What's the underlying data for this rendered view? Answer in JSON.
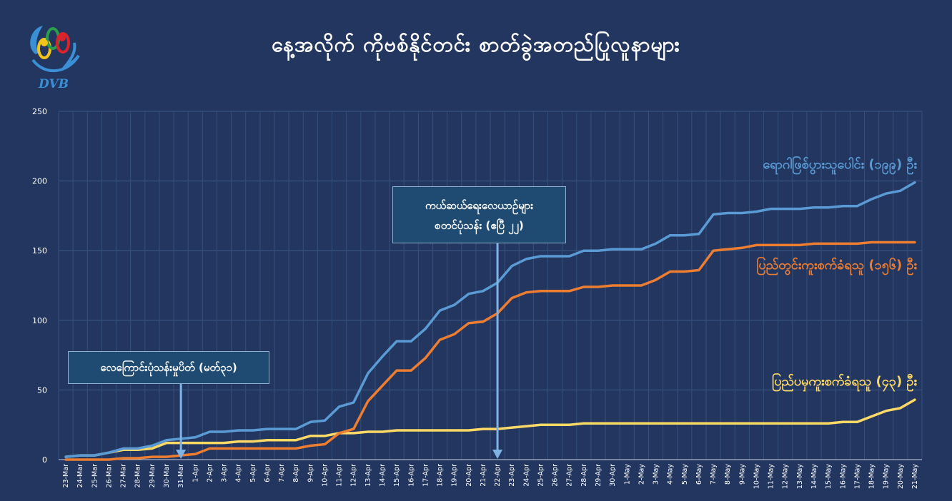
{
  "header": {
    "title": "နေ့အလိုက် ကိုဗစ်နိုင်တင်း စာတ်ခွဲအတည်ပြုလူနာများ",
    "logo_text": "DVB"
  },
  "annotations": [
    {
      "text": "လေကြောင်းပုံသန်းမှုပိတ် (မတ်၃၁)",
      "x": "31-Mar"
    },
    {
      "text_line1": "ကယ်ဆယ်ရေးလေယာဥ်များ",
      "text_line2": "စတင်ပုံသန်း (ဧပြီ ၂၂)",
      "x": "22-Apr"
    }
  ],
  "chart_data": {
    "type": "line",
    "title": "နေ့အလိုက် ကိုဗစ်နိုင်တင်း စာတ်ခွဲအတည်ပြုလူနာများ",
    "ylim": [
      0,
      250
    ],
    "yticks": [
      0,
      50,
      100,
      150,
      200,
      250
    ],
    "grid": true,
    "x": [
      "23-Mar",
      "24-Mar",
      "25-Mar",
      "26-Mar",
      "27-Mar",
      "28-Mar",
      "29-Mar",
      "30-Mar",
      "31-Mar",
      "1-Apr",
      "2-Apr",
      "3-Apr",
      "4-Apr",
      "5-Apr",
      "6-Apr",
      "7-Apr",
      "8-Apr",
      "9-Apr",
      "10-Apr",
      "11-Apr",
      "12-Apr",
      "13-Apr",
      "14-Apr",
      "15-Apr",
      "16-Apr",
      "17-Apr",
      "18-Apr",
      "19-Apr",
      "20-Apr",
      "21-Apr",
      "22-Apr",
      "23-Apr",
      "24-Apr",
      "25-Apr",
      "26-Apr",
      "27-Apr",
      "28-Apr",
      "29-Apr",
      "30-Apr",
      "1-May",
      "2-May",
      "3-May",
      "4-May",
      "5-May",
      "6-May",
      "7-May",
      "8-May",
      "9-May",
      "10-May",
      "11-May",
      "12-May",
      "13-May",
      "14-May",
      "15-May",
      "16-May",
      "17-May",
      "18-May",
      "19-May",
      "20-May",
      "21-May"
    ],
    "series": [
      {
        "name": "ရောဂါဖြစ်ပွားသူပေါင်း (၁၉၉) ဦး",
        "color": "#5b9bd5",
        "values": [
          2,
          3,
          3,
          5,
          8,
          8,
          10,
          14,
          15,
          16,
          20,
          20,
          21,
          21,
          22,
          22,
          22,
          27,
          28,
          38,
          41,
          62,
          74,
          85,
          85,
          94,
          107,
          111,
          119,
          121,
          127,
          139,
          144,
          146,
          146,
          146,
          150,
          150,
          151,
          151,
          151,
          155,
          161,
          161,
          162,
          176,
          177,
          177,
          178,
          180,
          180,
          180,
          181,
          181,
          182,
          182,
          187,
          191,
          193,
          199
        ]
      },
      {
        "name": "ပြည်တွင်းကူးစက်ခံရသူ (၁၅၆) ဦး",
        "color": "#ed7d31",
        "values": [
          0,
          0,
          0,
          0,
          1,
          1,
          2,
          2,
          3,
          4,
          8,
          8,
          8,
          8,
          8,
          8,
          8,
          10,
          11,
          19,
          22,
          42,
          53,
          64,
          64,
          73,
          86,
          90,
          98,
          99,
          105,
          116,
          120,
          121,
          121,
          121,
          124,
          124,
          125,
          125,
          125,
          129,
          135,
          135,
          136,
          150,
          151,
          152,
          154,
          154,
          154,
          154,
          155,
          155,
          155,
          155,
          156,
          156,
          156,
          156
        ]
      },
      {
        "name": "ပြည်ပမှကူးစက်ခံရသူ (၄၃) ဦး",
        "color": "#ffd966",
        "values": [
          2,
          3,
          3,
          5,
          7,
          7,
          8,
          12,
          12,
          12,
          12,
          12,
          13,
          13,
          14,
          14,
          14,
          17,
          17,
          19,
          19,
          20,
          20,
          21,
          21,
          21,
          21,
          21,
          21,
          22,
          22,
          23,
          24,
          25,
          25,
          25,
          26,
          26,
          26,
          26,
          26,
          26,
          26,
          26,
          26,
          26,
          26,
          26,
          26,
          26,
          26,
          26,
          26,
          26,
          27,
          27,
          31,
          35,
          37,
          43
        ]
      }
    ]
  }
}
